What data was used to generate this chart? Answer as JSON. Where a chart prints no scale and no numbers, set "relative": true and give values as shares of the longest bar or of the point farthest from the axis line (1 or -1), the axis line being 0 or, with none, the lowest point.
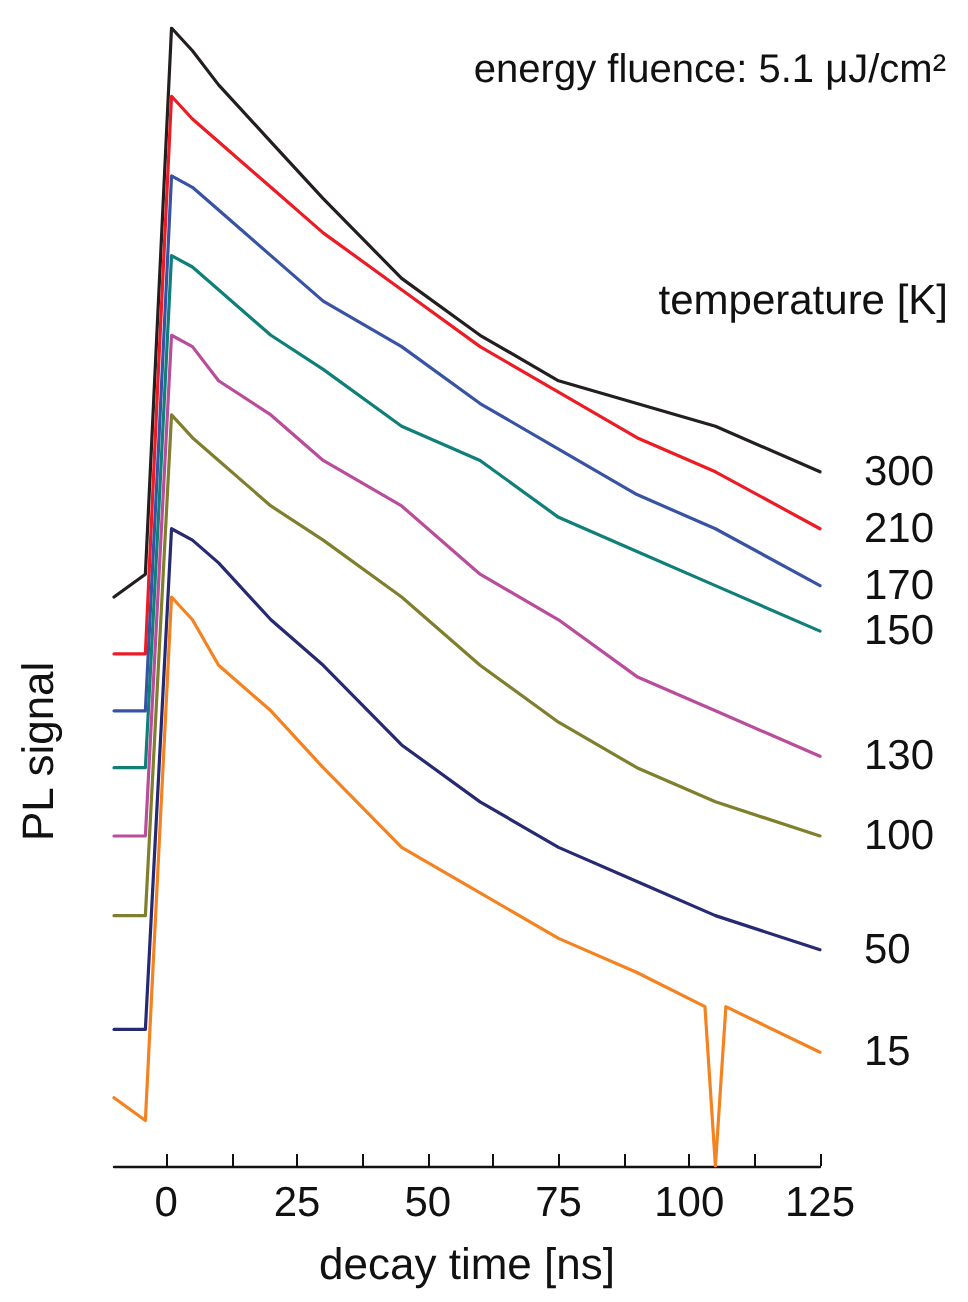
{
  "chart_data": {
    "type": "line",
    "title": "energy fluence: 5.1 μJ/cm²",
    "xlabel": "decay time [ns]",
    "ylabel": "PL signal",
    "legend_title": "temperature [K]",
    "relative": true,
    "x": [
      -10,
      -4,
      -1.5,
      1,
      5,
      10,
      20,
      30,
      45,
      60,
      75,
      90,
      105,
      125
    ],
    "xlim": [
      -10,
      125
    ],
    "xticks": [
      0,
      {
        "value": 12.5,
        "label": null
      },
      25,
      {
        "value": 37.5,
        "label": null
      },
      50,
      {
        "value": 62.5,
        "label": null
      },
      75,
      {
        "value": 87.5,
        "label": null
      },
      100,
      {
        "value": 112.5,
        "label": null
      },
      125
    ],
    "marker": "none",
    "line_style": "solid",
    "series": [
      {
        "name": "300",
        "color": "#231f20",
        "values": [
          0.5,
          0.52,
          0.76,
          1.0,
          0.98,
          0.95,
          0.9,
          0.85,
          0.78,
          0.73,
          0.69,
          0.67,
          0.65,
          0.61
        ]
      },
      {
        "name": "210",
        "color": "#ed1c24",
        "values": [
          0.45,
          0.45,
          0.7,
          0.94,
          0.92,
          0.9,
          0.86,
          0.82,
          0.77,
          0.72,
          0.68,
          0.64,
          0.61,
          0.56
        ]
      },
      {
        "name": "170",
        "color": "#3953a4",
        "values": [
          0.4,
          0.4,
          0.63,
          0.87,
          0.86,
          0.84,
          0.8,
          0.76,
          0.72,
          0.67,
          0.63,
          0.59,
          0.56,
          0.51
        ]
      },
      {
        "name": "150",
        "color": "#0f7f7a",
        "values": [
          0.35,
          0.35,
          0.57,
          0.8,
          0.79,
          0.77,
          0.73,
          0.7,
          0.65,
          0.62,
          0.57,
          0.54,
          0.51,
          0.47
        ]
      },
      {
        "name": "130",
        "color": "#b94d9c",
        "values": [
          0.29,
          0.29,
          0.51,
          0.73,
          0.72,
          0.69,
          0.66,
          0.62,
          0.58,
          0.52,
          0.48,
          0.43,
          0.4,
          0.36
        ]
      },
      {
        "name": "100",
        "color": "#7f7f2e",
        "values": [
          0.22,
          0.22,
          0.44,
          0.66,
          0.64,
          0.62,
          0.58,
          0.55,
          0.5,
          0.44,
          0.39,
          0.35,
          0.32,
          0.29
        ]
      },
      {
        "name": "50",
        "color": "#262a72",
        "values": [
          0.12,
          0.12,
          0.34,
          0.56,
          0.55,
          0.53,
          0.48,
          0.44,
          0.37,
          0.32,
          0.28,
          0.25,
          0.22,
          0.19
        ]
      },
      {
        "name": "15",
        "color": "#f58220",
        "x": [
          -10,
          -4,
          -1.5,
          1,
          5,
          10,
          20,
          30,
          45,
          60,
          75,
          90,
          103,
          105,
          107,
          125
        ],
        "values": [
          0.06,
          0.04,
          0.27,
          0.5,
          0.48,
          0.44,
          0.4,
          0.35,
          0.28,
          0.24,
          0.2,
          0.17,
          0.14,
          0.0,
          0.14,
          0.1
        ]
      }
    ]
  }
}
